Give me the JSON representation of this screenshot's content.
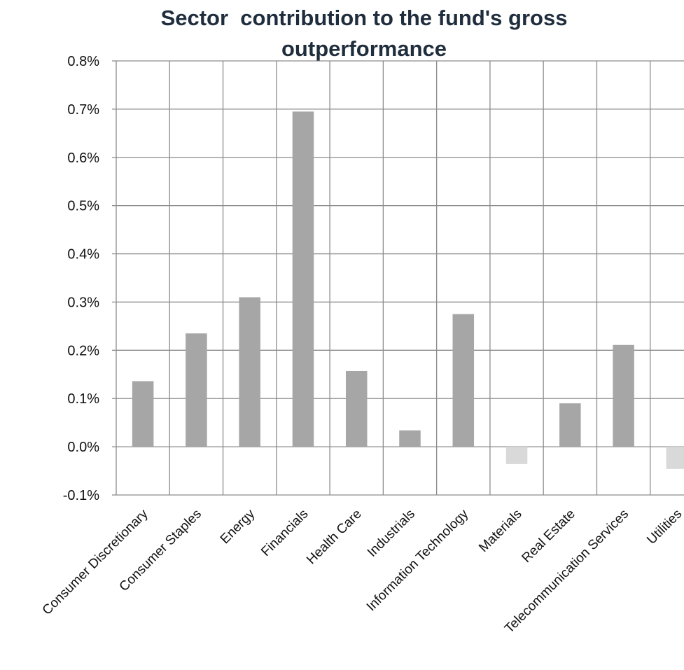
{
  "chart_data": {
    "type": "bar",
    "title": "Sector  contribution to the fund's gross outperformance",
    "xlabel": "",
    "ylabel": "",
    "categories": [
      "Consumer Discretionary",
      "Consumer Staples",
      "Energy",
      "Financials",
      "Health Care",
      "Industrials",
      "Information Technology",
      "Materials",
      "Real Estate",
      "Telecommunication Services",
      "Utilities"
    ],
    "values": [
      0.136,
      0.235,
      0.31,
      0.695,
      0.157,
      0.034,
      0.275,
      -0.036,
      0.09,
      0.211,
      -0.046
    ],
    "ylim": [
      -0.1,
      0.8
    ],
    "yticks": [
      "-0.1%",
      "0.0%",
      "0.1%",
      "0.2%",
      "0.3%",
      "0.4%",
      "0.5%",
      "0.6%",
      "0.7%",
      "0.8%"
    ],
    "grid": true,
    "legend": "none",
    "colors": {
      "positive": "#a6a6a6",
      "negative": "#d9d9d9",
      "grid": "#8c8c8c",
      "text": "#111111",
      "title": "#1f2d3d"
    }
  }
}
